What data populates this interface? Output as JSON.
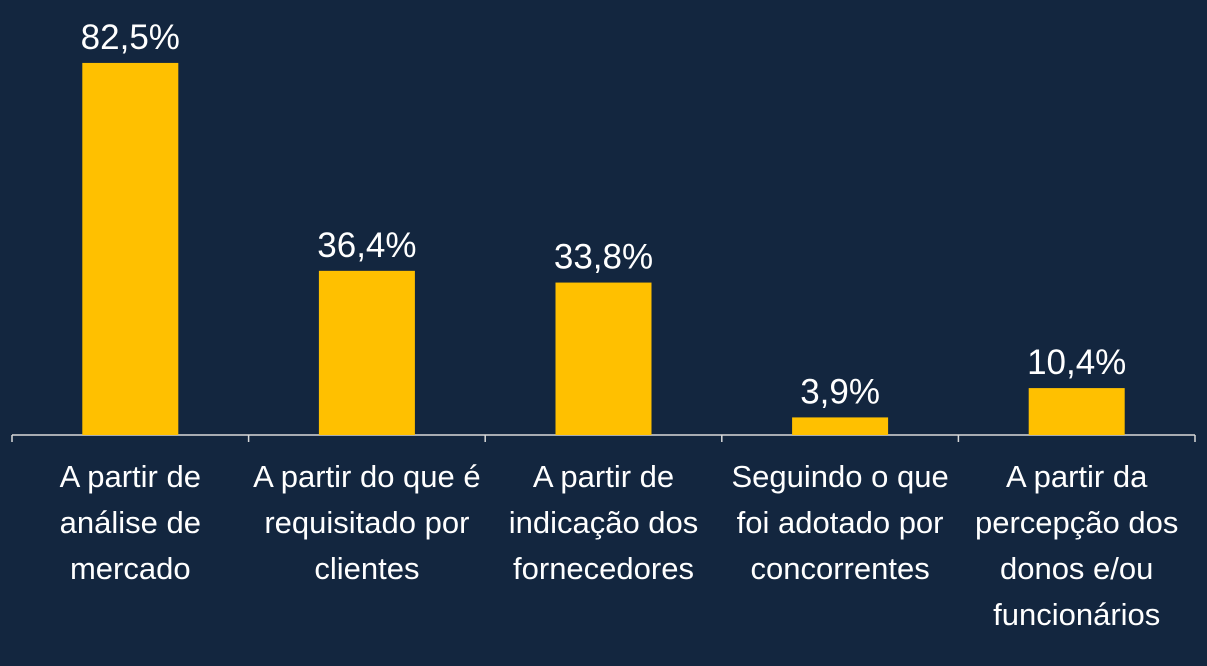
{
  "chart_data": {
    "type": "bar",
    "categories": [
      "A partir de análise de mercado",
      "A partir do que é requisitado por clientes",
      "A partir de indicação dos fornecedores",
      "Seguindo o que foi adotado por concorrentes",
      "A partir da percepção dos donos e/ou funcionários"
    ],
    "values": [
      82.5,
      36.4,
      33.8,
      3.9,
      10.4
    ],
    "value_labels": [
      "82,5%",
      "36,4%",
      "33,8%",
      "3,9%",
      "10,4%"
    ],
    "color": "#ffc000"
  }
}
